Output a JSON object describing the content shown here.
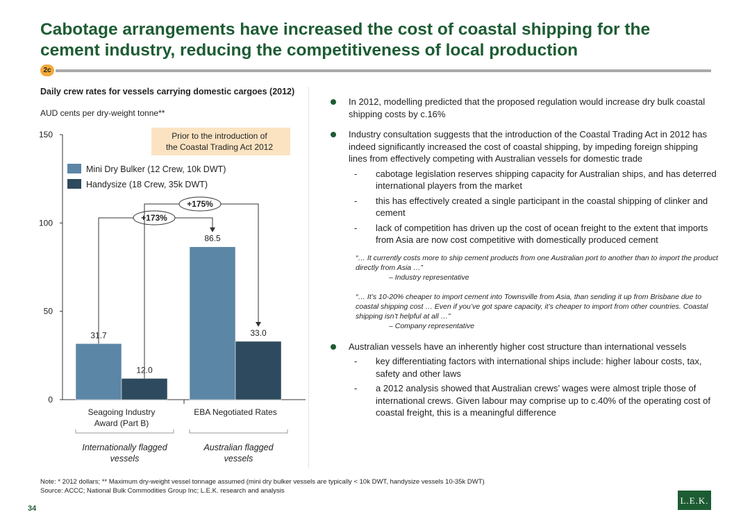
{
  "title": {
    "line1": "Cabotage arrangements have increased the cost of coastal shipping for the",
    "line2": "cement industry, reducing the competitiveness of local production"
  },
  "section_badge": "2c",
  "chart_heading": {
    "title": "Daily crew rates for vessels carrying domestic cargoes (2012)",
    "subtitle": "AUD cents per dry-weight tonne**"
  },
  "chart_data": {
    "type": "bar",
    "title": "Daily crew rates for vessels carrying domestic cargoes (2012)",
    "ylabel": "AUD cents per dry-weight tonne**",
    "ylim": [
      0,
      150
    ],
    "yticks": [
      "0",
      "50",
      "100",
      "150"
    ],
    "yticks_values": [
      0,
      50,
      100,
      150
    ],
    "categories": [
      "Seagoing Industry Award (Part B)",
      "EBA Negotiated Rates"
    ],
    "category_lines": [
      [
        "Seagoing Industry",
        "Award (Part B)"
      ],
      [
        "EBA Negotiated Rates"
      ]
    ],
    "groups": [
      {
        "lines": [
          "Internationally flagged",
          "vessels"
        ]
      },
      {
        "lines": [
          "Australian flagged",
          "vessels"
        ]
      }
    ],
    "series": [
      {
        "name": "Mini Dry Bulker (12 Crew, 10k DWT)",
        "color": "#5b86a6",
        "values": [
          31.7,
          86.5
        ],
        "labels": [
          "31.7",
          "86.5"
        ]
      },
      {
        "name": "Handysize (18 Crew, 35k DWT)",
        "color": "#2e4a5e",
        "values": [
          12.0,
          33.0
        ],
        "labels": [
          "12.0",
          "33.0"
        ]
      }
    ],
    "annotation": "Prior to the introduction of the Coastal Trading Act 2012",
    "annotation_lines": [
      "Prior to the introduction of",
      "the Coastal Trading Act 2012"
    ],
    "comparisons": [
      {
        "label": "+173%",
        "from_series": 0,
        "to_series": 0,
        "from_category": 0,
        "to_category": 1
      },
      {
        "label": "+175%",
        "from_series": 1,
        "to_series": 1,
        "from_category": 0,
        "to_category": 1
      }
    ],
    "legend_position": "top-left",
    "grid": false
  },
  "bullets": [
    {
      "text": "In 2012, modelling predicted that the proposed regulation would increase dry bulk coastal shipping costs by c.16%",
      "subs": [],
      "quotes": []
    },
    {
      "text": "Industry consultation suggests that the introduction of the Coastal Trading Act in 2012 has indeed significantly increased the cost of coastal shipping, by impeding foreign shipping lines from effectively competing with Australian vessels for domestic trade",
      "subs": [
        "cabotage legislation reserves shipping capacity for Australian ships, and has deterred international players from the market",
        "this has effectively created a single participant in the coastal shipping of clinker and cement",
        "lack of competition has driven up the cost of ocean freight to the extent that imports from Asia are now cost competitive with domestically produced cement"
      ],
      "quotes": [
        {
          "text": "“… It currently costs more to ship cement products from one Australian port to another than to import the product directly from Asia …”",
          "attribution": "– Industry representative"
        },
        {
          "text": "“… It’s 10-20% cheaper to import cement into Townsville from Asia, than sending it up from Brisbane due to coastal shipping cost … Even if you’ve got spare capacity, it’s cheaper to import from other countries. Coastal shipping isn’t helpful at all …”",
          "attribution": "– Company representative"
        }
      ]
    },
    {
      "text": "Australian vessels have an inherently higher cost structure than international vessels",
      "subs": [
        "key differentiating factors with international ships include: higher labour costs, tax, safety and other laws",
        "a 2012 analysis showed that Australian crews’ wages were almost triple those of international crews. Given labour may comprise up to c.40% of the operating cost of coastal freight, this is a meaningful difference"
      ],
      "quotes": []
    }
  ],
  "note": {
    "line1": "Note:     * 2012 dollars; ** Maximum dry-weight vessel tonnage assumed (mini dry bulker vessels are typically < 10k DWT, handysize vessels 10-35k DWT)",
    "line2": "Source:  ACCC; National Bulk Commodities Group Inc; L.E.K. research and analysis"
  },
  "page_number": "34",
  "logo_text": "L.E.K.",
  "colors": {
    "brand_green": "#1d5c33",
    "badge_orange": "#f2a93b",
    "annotation_fill": "#fbe3c2"
  }
}
